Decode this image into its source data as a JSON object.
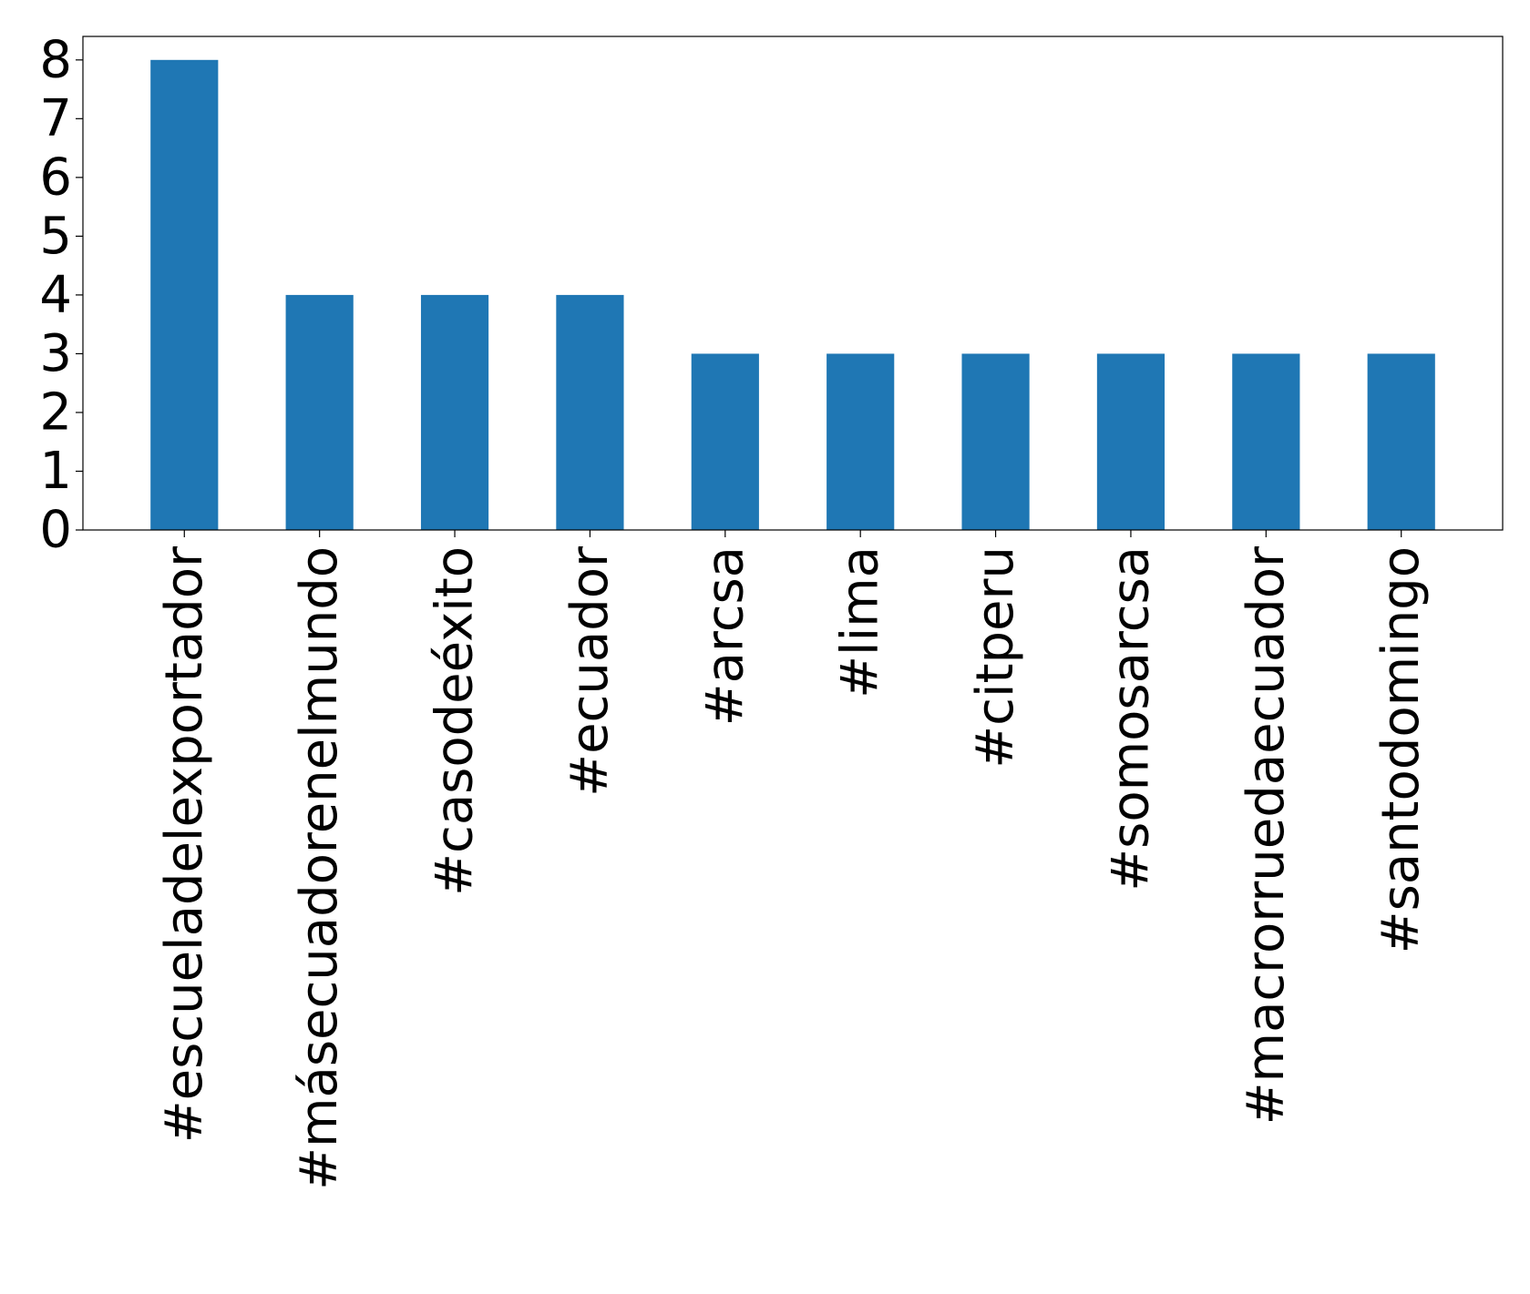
{
  "chart_data": {
    "type": "bar",
    "title": "",
    "xlabel": "",
    "ylabel": "",
    "categories": [
      "#escueladelexportador",
      "#másecuadorenelmundo",
      "#casodeéxito",
      "#ecuador",
      "#arcsa",
      "#lima",
      "#citperu",
      "#somosarcsa",
      "#macrorruedaecuador",
      "#santodomingo"
    ],
    "values": [
      8,
      4,
      4,
      4,
      3,
      3,
      3,
      3,
      3,
      3
    ],
    "yticks": [
      "0",
      "1",
      "2",
      "3",
      "4",
      "5",
      "6",
      "7",
      "8"
    ],
    "ylim": [
      0,
      8.4
    ],
    "grid": false,
    "legend": "none",
    "bar_color": "#1f77b4"
  }
}
